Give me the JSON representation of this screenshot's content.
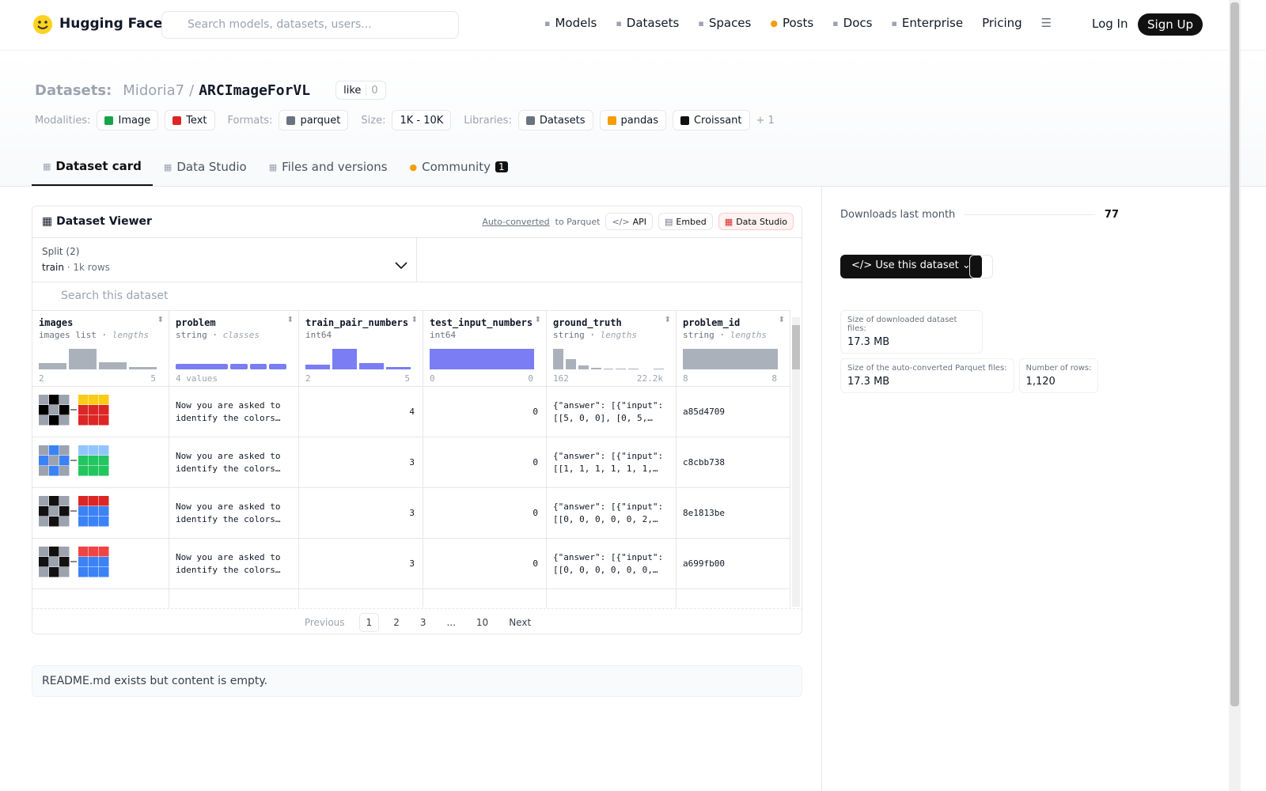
{
  "nav": {
    "brand": "Hugging Face",
    "search_placeholder": "Search models, datasets, users...",
    "links": [
      "Models",
      "Datasets",
      "Spaces",
      "Posts",
      "Docs",
      "Enterprise",
      "Pricing"
    ],
    "login": "Log In",
    "signup": "Sign Up"
  },
  "header": {
    "prefix": "Datasets:",
    "owner": "Midoria7",
    "separator": "/",
    "name": "ARCImageForVL",
    "like": "like",
    "likes": 0,
    "tag_groups": [
      {
        "label": "Modalities:",
        "items": [
          "Image",
          "Text"
        ]
      },
      {
        "label": "Formats:",
        "items": [
          "parquet"
        ]
      },
      {
        "label": "Size:",
        "items": [
          "1K - 10K"
        ]
      },
      {
        "label": "Libraries:",
        "items": [
          "Datasets",
          "pandas",
          "Croissant"
        ]
      }
    ],
    "more": "+ 1"
  },
  "tabs": {
    "items": [
      "Dataset card",
      "Data Studio",
      "Files and versions",
      "Community"
    ],
    "community_count": 1
  },
  "viewer": {
    "title": "Dataset Viewer",
    "auto": "Auto-converted",
    "to": "to Parquet",
    "buttons": [
      "API",
      "Embed",
      "Data Studio"
    ],
    "split_label": "Split (2)",
    "split": "train",
    "split_rows": "1k rows",
    "search_placeholder": "Search this dataset",
    "columns": [
      {
        "name": "images",
        "type": "images list",
        "kind": "lengths",
        "min": 2,
        "max": 5,
        "hist": [
          30,
          100,
          35,
          12
        ]
      },
      {
        "name": "problem",
        "type": "string",
        "kind": "classes",
        "summary": "4 values",
        "hist": [
          38,
          13,
          12,
          13
        ]
      },
      {
        "name": "train_pair_numbers",
        "type": "int64",
        "min": 2,
        "max": 5,
        "hist": [
          25,
          100,
          30,
          12
        ]
      },
      {
        "name": "test_input_numbers",
        "type": "int64",
        "min": 0,
        "max": 0,
        "hist": [
          100
        ]
      },
      {
        "name": "ground_truth",
        "type": "string",
        "kind": "lengths",
        "min": 162,
        "max": "22.2k",
        "hist": [
          100,
          50,
          20,
          8,
          5,
          4,
          3,
          0,
          3
        ]
      },
      {
        "name": "problem_id",
        "type": "string",
        "kind": "lengths",
        "min": 8,
        "max": 8,
        "hist": [
          100
        ]
      }
    ],
    "rows": [
      [
        "Now you are asked to identify the colors…",
        4,
        0,
        "{\"answer\": [{\"input\": [[5, 0, 0], [0, 5,…",
        "a85d4709"
      ],
      [
        "Now you are asked to identify the colors…",
        3,
        0,
        "{\"answer\": [{\"input\": [[1, 1, 1, 1, 1, 1,…",
        "c8cbb738"
      ],
      [
        "Now you are asked to identify the colors…",
        3,
        0,
        "{\"answer\": [{\"input\": [[0, 0, 0, 0, 0, 2,…",
        "8e1813be"
      ],
      [
        "Now you are asked to identify the colors…",
        3,
        0,
        "{\"answer\": [{\"input\": [[0, 0, 0, 0, 0, 0,…",
        "a699fb00"
      ]
    ],
    "pagination": {
      "previous": "Previous",
      "pages": [
        1,
        2,
        3,
        "...",
        10
      ],
      "next": "Next"
    }
  },
  "readme": "README.md exists but content is empty.",
  "sidebar": {
    "downloads_label": "Downloads last month",
    "downloads": 77,
    "use": "Use this dataset",
    "sizes": [
      {
        "label": "Size of downloaded dataset files:",
        "value": "17.3 MB"
      },
      {
        "label": "Size of the auto-converted Parquet files:",
        "value": "17.3 MB"
      },
      {
        "label": "Number of rows:",
        "value": "1,120"
      }
    ]
  }
}
